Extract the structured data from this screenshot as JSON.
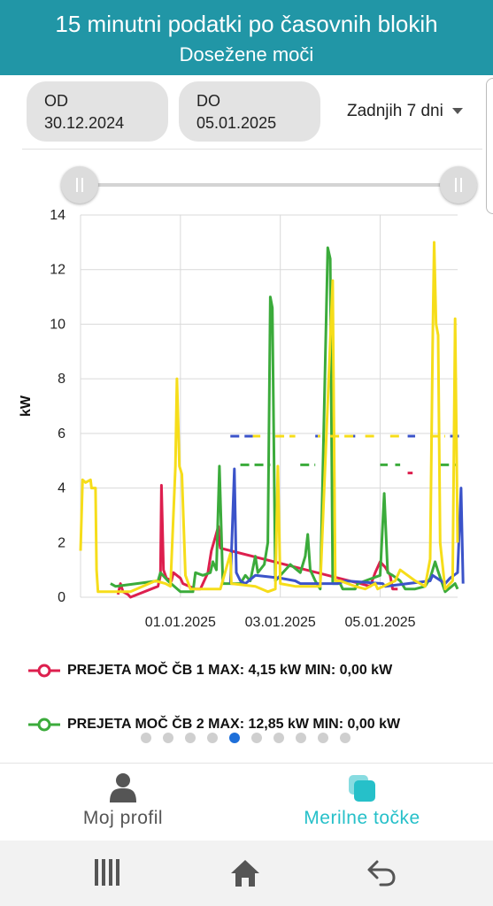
{
  "header": {
    "title": "15 minutni podatki po časovnih blokih",
    "subtitle": "Dosežene moči"
  },
  "date_range": {
    "from_label": "OD",
    "from_value": "30.12.2024",
    "to_label": "DO",
    "to_value": "05.01.2025",
    "period_selected": "Zadnjih 7 dni"
  },
  "slider": {
    "handle_icon": "pause-bars-icon",
    "start_fraction": 0.0,
    "end_fraction": 1.0
  },
  "chart_data": {
    "type": "line",
    "ylabel": "kW",
    "xlabel": "",
    "ylim": [
      0,
      14
    ],
    "y_ticks": [
      "0",
      "2",
      "4",
      "6",
      "8",
      "10",
      "12",
      "14"
    ],
    "x_ticks": [
      "01.01.2025",
      "03.01.2025",
      "05.01.2025"
    ],
    "xlim": [
      "2024-12-30",
      "2025-01-05"
    ],
    "grid": true,
    "colors": {
      "red": "#dd1f4e",
      "green": "#3bab3b",
      "blue": "#3b53c9",
      "yellow": "#f6dd1a"
    },
    "series": [
      {
        "name": "PREJETA MOČ ČB 1",
        "color": "#dd1f4e",
        "points": [
          [
            0.75,
            0.1
          ],
          [
            0.8,
            0.5
          ],
          [
            0.85,
            0.2
          ],
          [
            0.95,
            0.1
          ],
          [
            1.0,
            0.0
          ],
          [
            1.55,
            0.4
          ],
          [
            1.6,
            0.8
          ],
          [
            1.62,
            4.1
          ],
          [
            1.66,
            1.0
          ],
          [
            1.72,
            0.7
          ],
          [
            1.82,
            0.6
          ],
          [
            1.86,
            0.9
          ],
          [
            2.0,
            0.7
          ],
          [
            2.05,
            0.5
          ],
          [
            2.3,
            0.3
          ],
          [
            2.4,
            0.3
          ],
          [
            2.55,
            0.9
          ],
          [
            2.62,
            1.7
          ],
          [
            2.7,
            2.2
          ],
          [
            2.76,
            2.6
          ],
          [
            2.78,
            2.0
          ],
          [
            2.8,
            1.8
          ],
          [
            5.6,
            0.5
          ],
          [
            5.8,
            0.4
          ],
          [
            5.9,
            0.9
          ],
          [
            6.0,
            1.3
          ],
          [
            6.1,
            1.1
          ],
          [
            6.2,
            0.8
          ],
          [
            6.25,
            0.3
          ],
          [
            6.35,
            0.3
          ]
        ],
        "flat_max": [
          [
            6.55,
            4.55,
            6.65
          ]
        ]
      },
      {
        "name": "PREJETA MOČ ČB 2",
        "color": "#3bab3b",
        "points": [
          [
            0.6,
            0.5
          ],
          [
            0.7,
            0.4
          ],
          [
            1.55,
            0.6
          ],
          [
            1.6,
            0.9
          ],
          [
            1.75,
            0.6
          ],
          [
            2.0,
            0.2
          ],
          [
            2.25,
            0.2
          ],
          [
            2.3,
            0.9
          ],
          [
            2.45,
            0.8
          ],
          [
            2.6,
            0.9
          ],
          [
            2.65,
            1.3
          ],
          [
            2.72,
            1.0
          ],
          [
            2.78,
            4.8
          ],
          [
            2.85,
            0.5
          ],
          [
            3.2,
            0.5
          ],
          [
            3.3,
            0.8
          ],
          [
            3.4,
            0.6
          ],
          [
            3.5,
            1.5
          ],
          [
            3.55,
            0.9
          ],
          [
            3.68,
            1.2
          ],
          [
            3.75,
            2.0
          ],
          [
            3.8,
            11.0
          ],
          [
            3.84,
            10.6
          ],
          [
            3.9,
            0.6
          ],
          [
            4.2,
            1.2
          ],
          [
            4.4,
            0.9
          ],
          [
            4.5,
            1.5
          ],
          [
            4.55,
            2.3
          ],
          [
            4.6,
            1.0
          ],
          [
            4.7,
            0.6
          ],
          [
            4.8,
            0.3
          ],
          [
            4.95,
            12.8
          ],
          [
            5.0,
            12.4
          ],
          [
            5.05,
            0.5
          ],
          [
            5.2,
            0.5
          ],
          [
            5.25,
            0.3
          ],
          [
            5.5,
            0.3
          ],
          [
            5.55,
            0.5
          ],
          [
            6.0,
            0.8
          ],
          [
            6.08,
            3.8
          ],
          [
            6.15,
            0.9
          ],
          [
            6.25,
            0.8
          ],
          [
            6.4,
            0.6
          ],
          [
            6.5,
            0.3
          ],
          [
            6.7,
            0.3
          ],
          [
            6.9,
            0.4
          ],
          [
            7.0,
            0.7
          ],
          [
            7.1,
            1.3
          ],
          [
            7.15,
            1.0
          ],
          [
            7.3,
            0.2
          ],
          [
            7.5,
            0.5
          ],
          [
            7.55,
            0.3
          ]
        ],
        "flat_max": [
          [
            3.2,
            4.85,
            3.8
          ],
          [
            4.4,
            4.85,
            4.7
          ],
          [
            6.0,
            4.85,
            6.15
          ],
          [
            6.3,
            4.85,
            6.4
          ],
          [
            7.2,
            4.85,
            7.55
          ]
        ]
      },
      {
        "name": "",
        "color": "#3b53c9",
        "points": [
          [
            3.0,
            0.5
          ],
          [
            3.08,
            4.7
          ],
          [
            3.12,
            0.9
          ],
          [
            3.2,
            0.6
          ],
          [
            3.3,
            0.5
          ],
          [
            3.5,
            0.8
          ],
          [
            4.0,
            0.7
          ],
          [
            4.3,
            0.6
          ],
          [
            4.4,
            0.5
          ],
          [
            5.15,
            0.5
          ],
          [
            5.3,
            0.6
          ],
          [
            6.05,
            0.5
          ],
          [
            6.1,
            0.4
          ],
          [
            7.0,
            0.6
          ],
          [
            7.05,
            0.8
          ],
          [
            7.3,
            0.5
          ],
          [
            7.4,
            0.7
          ],
          [
            7.55,
            0.9
          ],
          [
            7.62,
            4.0
          ],
          [
            7.66,
            0.5
          ]
        ],
        "flat_max": [
          [
            3.0,
            5.9,
            3.45
          ],
          [
            4.7,
            5.9,
            4.8
          ],
          [
            5.4,
            5.9,
            5.5
          ],
          [
            6.55,
            5.9,
            6.7
          ],
          [
            7.4,
            5.9,
            7.6
          ]
        ]
      },
      {
        "name": "",
        "color": "#f6dd1a",
        "points": [
          [
            0.0,
            1.7
          ],
          [
            0.04,
            4.3
          ],
          [
            0.1,
            4.2
          ],
          [
            0.2,
            4.3
          ],
          [
            0.22,
            4.0
          ],
          [
            0.3,
            4.0
          ],
          [
            0.32,
            1.0
          ],
          [
            0.35,
            0.2
          ],
          [
            1.0,
            0.2
          ],
          [
            1.5,
            0.6
          ],
          [
            1.7,
            0.5
          ],
          [
            1.8,
            0.4
          ],
          [
            1.9,
            4.8
          ],
          [
            1.93,
            8.0
          ],
          [
            1.98,
            4.8
          ],
          [
            2.03,
            4.5
          ],
          [
            2.1,
            0.8
          ],
          [
            2.2,
            0.3
          ],
          [
            2.45,
            0.3
          ],
          [
            2.8,
            0.3
          ],
          [
            3.0,
            1.6
          ],
          [
            3.02,
            0.5
          ],
          [
            3.5,
            0.4
          ],
          [
            3.75,
            0.2
          ],
          [
            3.9,
            0.3
          ],
          [
            3.95,
            4.8
          ],
          [
            4.0,
            0.5
          ],
          [
            4.3,
            0.4
          ],
          [
            4.8,
            0.4
          ],
          [
            5.05,
            11.6
          ],
          [
            5.1,
            0.6
          ],
          [
            5.2,
            0.6
          ],
          [
            5.5,
            0.4
          ],
          [
            5.7,
            0.3
          ],
          [
            5.9,
            0.5
          ],
          [
            5.95,
            0.3
          ],
          [
            6.3,
            0.6
          ],
          [
            6.4,
            1.0
          ],
          [
            6.7,
            0.6
          ],
          [
            6.8,
            0.5
          ],
          [
            6.9,
            0.4
          ],
          [
            7.0,
            1.4
          ],
          [
            7.05,
            9.2
          ],
          [
            7.08,
            13.0
          ],
          [
            7.12,
            10.0
          ],
          [
            7.16,
            9.6
          ],
          [
            7.2,
            2.0
          ],
          [
            7.3,
            0.3
          ],
          [
            7.45,
            0.6
          ],
          [
            7.5,
            10.2
          ],
          [
            7.55,
            2.0
          ]
        ],
        "flat_max": [
          [
            3.45,
            5.9,
            3.6
          ],
          [
            3.9,
            5.9,
            4.3
          ],
          [
            4.75,
            5.9,
            4.8
          ],
          [
            5.0,
            5.9,
            5.5
          ],
          [
            5.7,
            5.9,
            5.9
          ],
          [
            6.2,
            5.9,
            6.4
          ],
          [
            7.0,
            5.9,
            7.3
          ]
        ]
      }
    ]
  },
  "legend": [
    {
      "text": "PREJETA MOČ ČB 1 MAX: 4,15 kW MIN: 0,00 kW",
      "color": "#dd1f4e"
    },
    {
      "text": "PREJETA MOČ ČB 2 MAX: 12,85 kW MIN: 0,00 kW",
      "color": "#3bab3b"
    }
  ],
  "pager": {
    "count": 10,
    "active_index": 4
  },
  "bottom_nav": {
    "profile_label": "Moj profil",
    "profile_icon": "person-icon",
    "points_label": "Merilne točke",
    "points_icon": "copy-pages-icon",
    "active": "Merilne točke"
  },
  "system_nav": {
    "recents_icon": "recents-icon",
    "home_icon": "home-icon",
    "back_icon": "back-icon"
  }
}
